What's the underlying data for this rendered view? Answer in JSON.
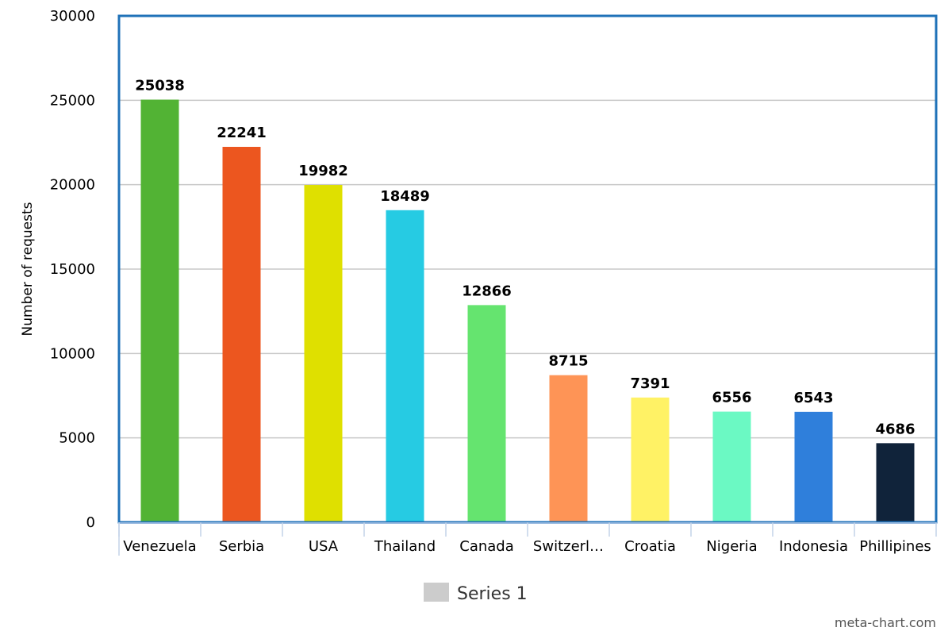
{
  "chart_data": {
    "type": "bar",
    "categories": [
      "Venezuela",
      "Serbia",
      "USA",
      "Thailand",
      "Canada",
      "Switzerl…",
      "Croatia",
      "Nigeria",
      "Indonesia",
      "Phillipines"
    ],
    "series": [
      {
        "name": "Series 1",
        "values": [
          25038,
          22241,
          19982,
          18489,
          12866,
          8715,
          7391,
          6556,
          6543,
          4686
        ]
      }
    ],
    "data_labels": [
      "25038",
      "22241",
      "19982",
      "18489",
      "12866",
      "8715",
      "7391",
      "6556",
      "6543",
      "4686"
    ],
    "bar_colors": [
      "#52b334",
      "#ec561f",
      "#dfe000",
      "#26cbe3",
      "#65e46f",
      "#fe9456",
      "#fff265",
      "#6bf9c3",
      "#2f7fdb",
      "#10233a"
    ],
    "ylabel": "Number of requests",
    "xlabel": "",
    "ylim": [
      0,
      30000
    ],
    "yticks": [
      "0",
      "5000",
      "10000",
      "15000",
      "20000",
      "25000",
      "30000"
    ],
    "grid": true,
    "legend_position": "bottom",
    "legend_color": "#cccccc",
    "frame_color": "#1f72b8"
  },
  "watermark": "meta-chart.com"
}
